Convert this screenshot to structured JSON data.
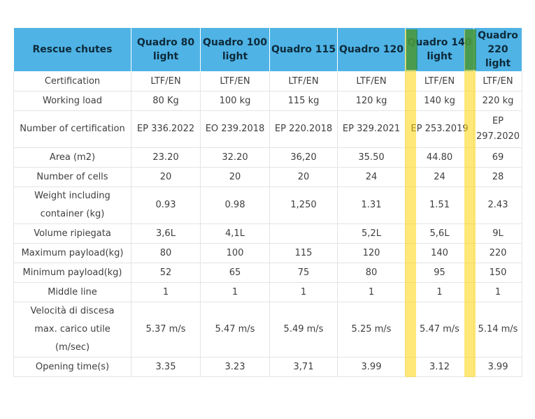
{
  "table": {
    "header": [
      "Rescue chutes",
      "Quadro 80 light",
      "Quadro 100 light",
      "Quadro 115",
      "Quadro 120",
      "Quadro 140 light",
      "Quadro 220 light"
    ],
    "rows": [
      {
        "label": "Certification",
        "values": [
          "LTF/EN",
          "LTF/EN",
          "LTF/EN",
          "LTF/EN",
          "LTF/EN",
          "LTF/EN"
        ]
      },
      {
        "label": "Working load",
        "values": [
          "80 Kg",
          "100 kg",
          "115 kg",
          "120 kg",
          "140 kg",
          "220 kg"
        ]
      },
      {
        "label": "Number of certification",
        "values": [
          "EP 336.2022",
          "EO 239.2018",
          "EP 220.2018",
          "EP 329.2021",
          "EP 253.2019",
          "EP 297.2020"
        ]
      },
      {
        "label": "Area (m2)",
        "values": [
          "23.20",
          "32.20",
          "36,20",
          "35.50",
          "44.80",
          "69"
        ]
      },
      {
        "label": "Number of cells",
        "values": [
          "20",
          "20",
          "20",
          "24",
          "24",
          "28"
        ]
      },
      {
        "label": "Weight including container (kg)",
        "values": [
          "0.93",
          "0.98",
          "1,250",
          "1.31",
          "1.51",
          "2.43"
        ]
      },
      {
        "label": "Volume ripiegata",
        "values": [
          "3,6L",
          "4,1L",
          "",
          "5,2L",
          "5,6L",
          "9L"
        ]
      },
      {
        "label": "Maximum payload(kg)",
        "values": [
          "80",
          "100",
          "115",
          "120",
          "140",
          "220"
        ]
      },
      {
        "label": "Minimum payload(kg)",
        "values": [
          "52",
          "65",
          "75",
          "80",
          "95",
          "150"
        ]
      },
      {
        "label": "Middle line",
        "values": [
          "1",
          "1",
          "1",
          "1",
          "1",
          "1"
        ]
      },
      {
        "label": "Velocità di discesa max. carico utile (m/sec)",
        "values": [
          "5.37 m/s",
          "5.47 m/s",
          "5.49 m/s",
          "5.25 m/s",
          "5.47 m/s",
          "5.14 m/s"
        ]
      },
      {
        "label": "Opening time(s)",
        "values": [
          "3.35",
          "3.23",
          "3,71",
          "3.99",
          "3.12",
          "3.99"
        ]
      }
    ]
  },
  "highlight_colors": {
    "marker": "#ffd60a",
    "header_marker": "#288c46",
    "header_bg": "#4fb3e5"
  }
}
